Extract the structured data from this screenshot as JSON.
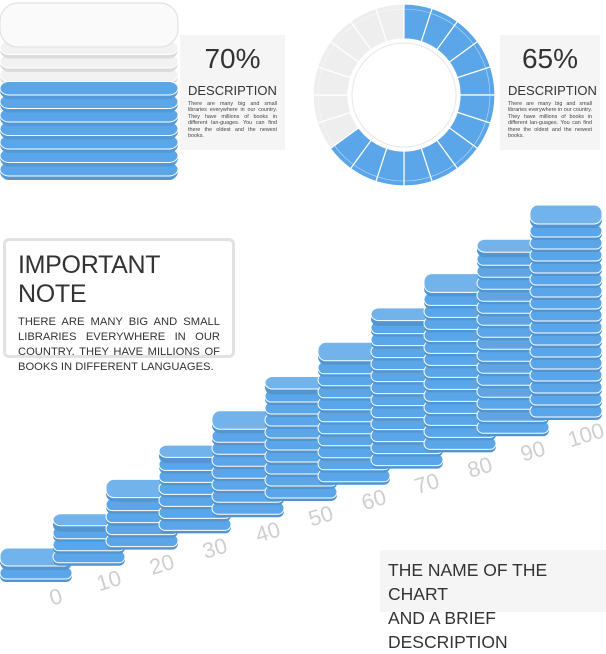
{
  "chart_data": [
    {
      "type": "stack",
      "values": [
        70
      ],
      "value_labels": [
        "70%"
      ],
      "color": "#5aa6e8",
      "rest_color": "#f2f2f2",
      "heading": "DESCRIPTION",
      "text": "There are many big and small libraries everywhere in our country. They have millions of books in different lan-guages. You can find there the oldest and the newest books."
    },
    {
      "type": "donut",
      "values": [
        65
      ],
      "value_labels": [
        "65%"
      ],
      "color": "#5aa6e8",
      "rest_color": "#eeeeee",
      "heading": "DESCRIPTION",
      "text": "There are many big and small libraries everywhere in our country. They have millions of books in different lan-guages. You can find there the oldest and the newest books."
    },
    {
      "type": "bar",
      "x": [
        0,
        10,
        20,
        30,
        40,
        50,
        60,
        70,
        80,
        90,
        100
      ],
      "values": [
        0,
        10,
        20,
        30,
        40,
        50,
        60,
        70,
        80,
        90,
        100
      ],
      "color": "#5aa6e8",
      "caption": [
        "THE NAME OF THE CHART",
        "AND A BRIEF DESCRIPTION"
      ]
    }
  ],
  "note": {
    "title": "IMPORTANT NOTE",
    "text": "THERE ARE MANY BIG AND SMALL LIBRARIES EVERYWHERE IN OUR COUNTRY. THEY HAVE MILLIONS OF BOOKS IN DIFFERENT LANGUAGES."
  }
}
